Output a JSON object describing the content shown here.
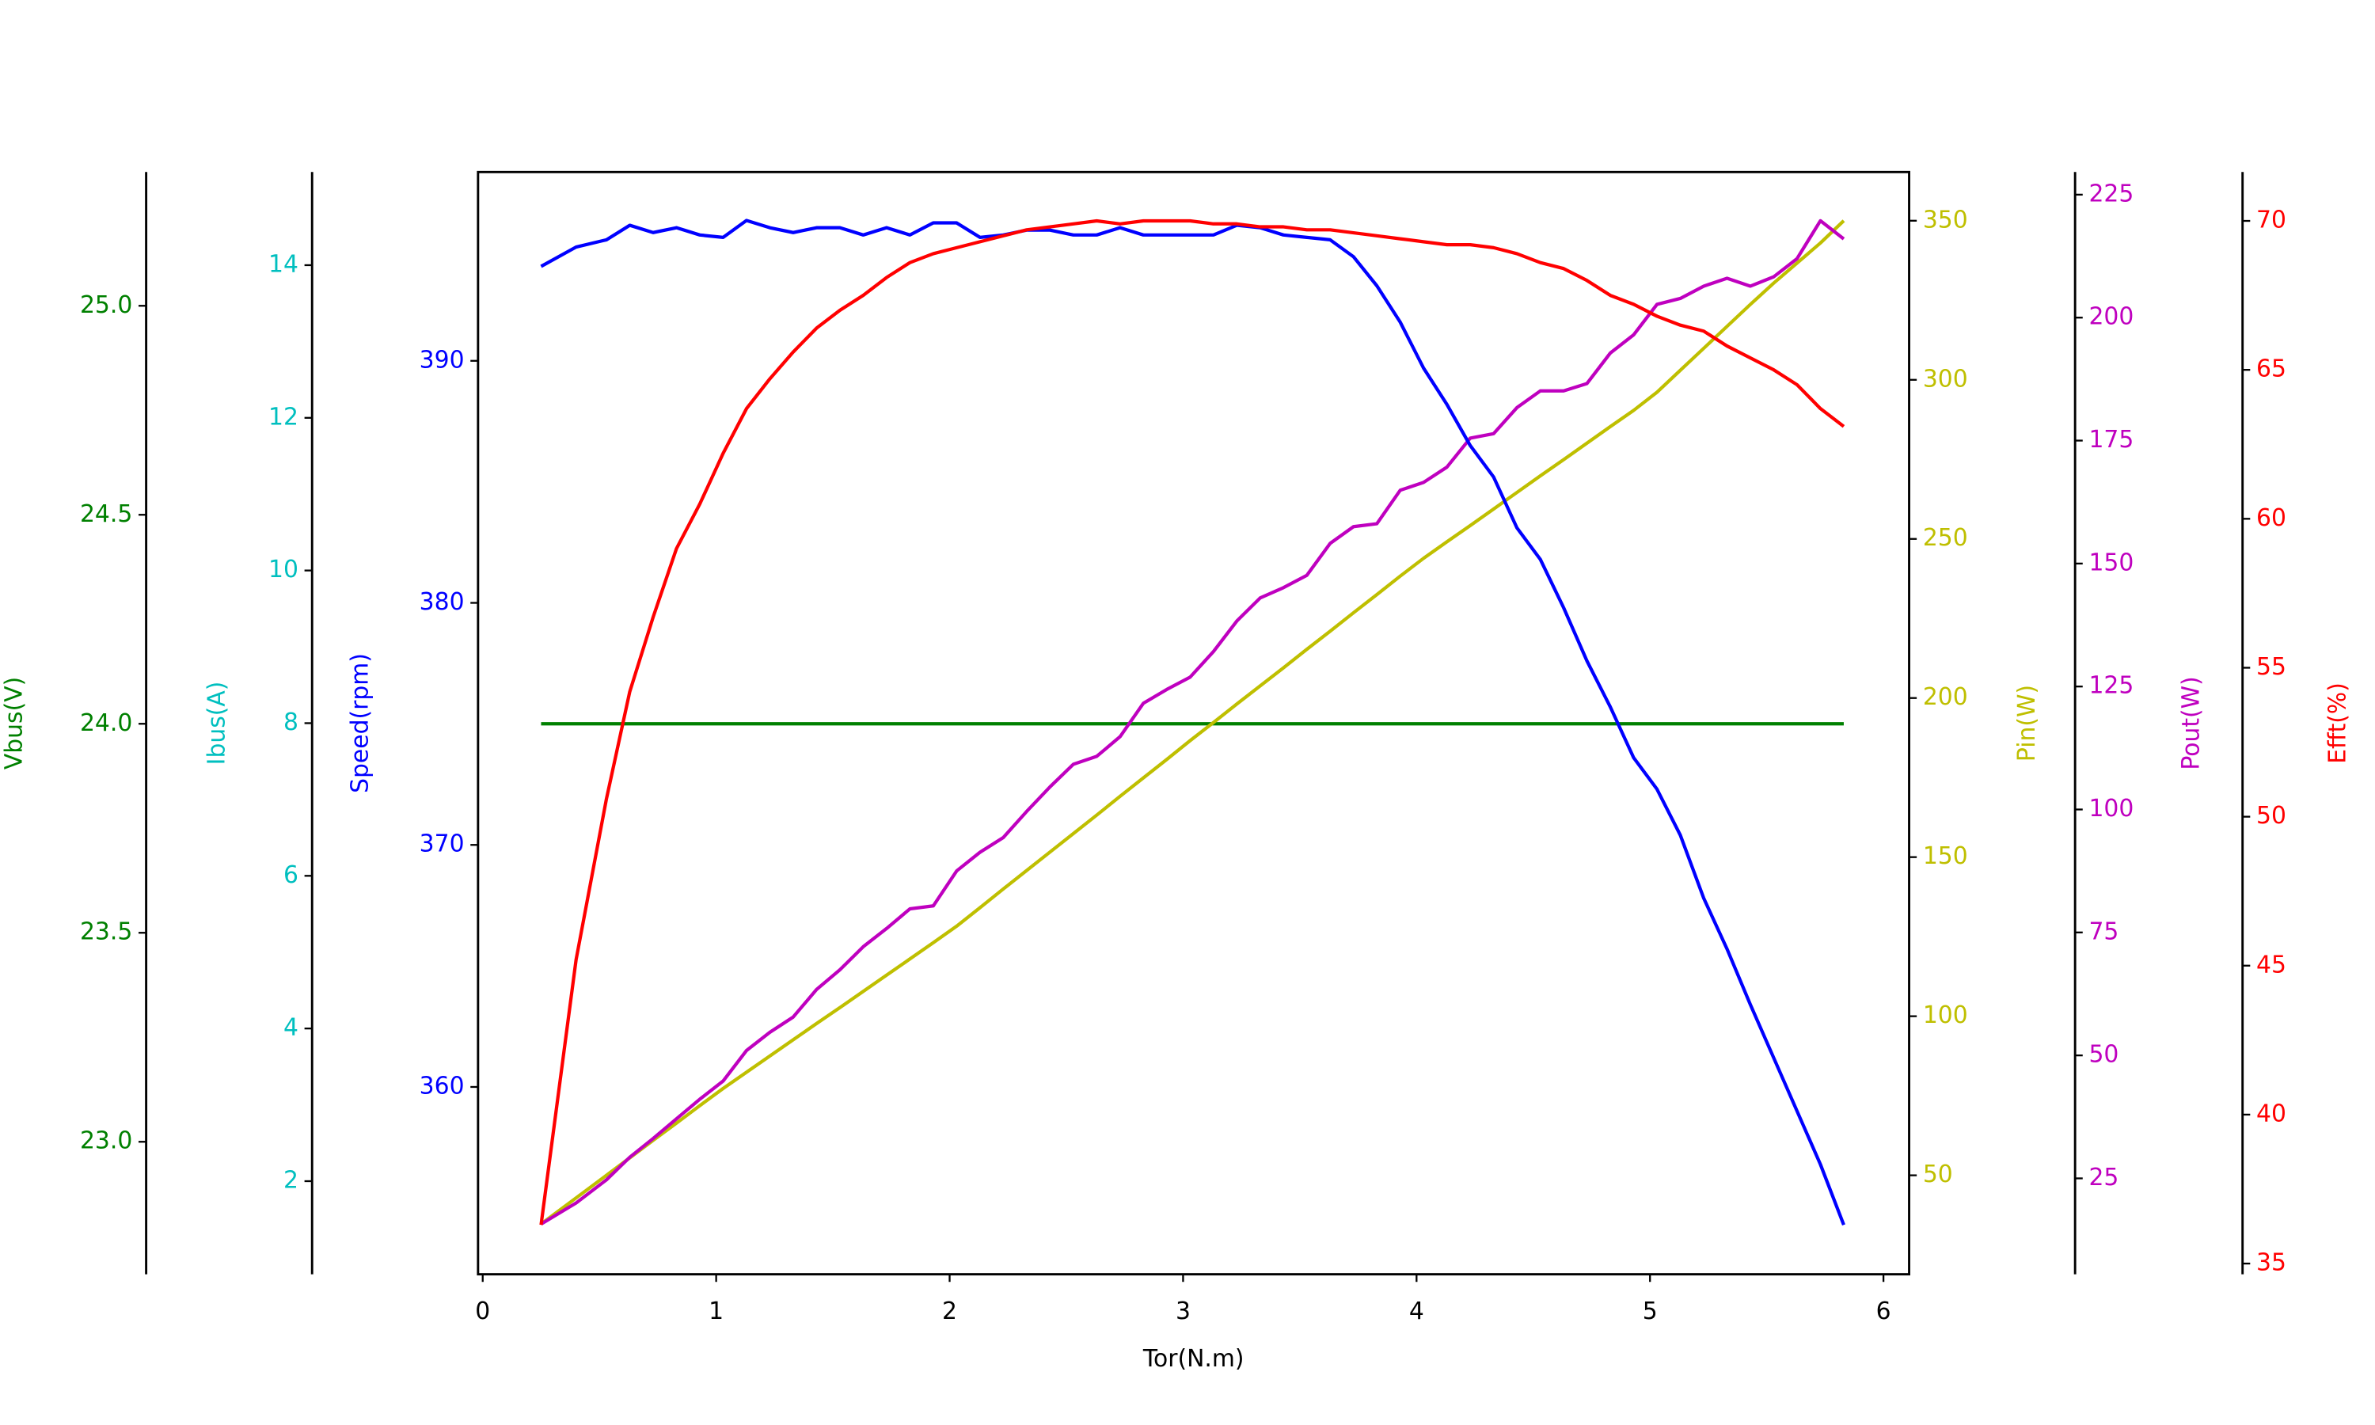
{
  "chart_data": {
    "type": "line",
    "xlabel": "Tor(N.m)",
    "xlim": [
      -0.02,
      6.11
    ],
    "xticks": [
      0,
      1,
      2,
      3,
      4,
      5,
      6
    ],
    "x": [
      0.25,
      0.4,
      0.53,
      0.63,
      0.73,
      0.83,
      0.93,
      1.03,
      1.13,
      1.23,
      1.33,
      1.43,
      1.53,
      1.63,
      1.73,
      1.83,
      1.93,
      2.03,
      2.13,
      2.23,
      2.33,
      2.43,
      2.53,
      2.63,
      2.73,
      2.83,
      2.93,
      3.03,
      3.13,
      3.23,
      3.33,
      3.43,
      3.53,
      3.63,
      3.73,
      3.83,
      3.93,
      4.03,
      4.13,
      4.23,
      4.33,
      4.43,
      4.53,
      4.63,
      4.73,
      4.83,
      4.93,
      5.03,
      5.13,
      5.23,
      5.33,
      5.43,
      5.53,
      5.63,
      5.73,
      5.83
    ],
    "axes": [
      {
        "label": "Vbus(V)",
        "color": "#008000",
        "lim": [
          22.683,
          25.32
        ],
        "ticks": [
          {
            "value": 23,
            "label": "23.0"
          },
          23.5,
          {
            "value": 24,
            "label": "24.0"
          },
          24.5,
          {
            "value": 25,
            "label": "25.0"
          }
        ]
      },
      {
        "label": "Ibus(A)",
        "color": "#00bfbf",
        "lim": [
          0.78,
          15.22
        ],
        "ticks": [
          2,
          4,
          6,
          8,
          10,
          12,
          14
        ]
      },
      {
        "label": "Speed(rpm)",
        "color": "#0000ff",
        "lim": [
          352.26,
          397.8
        ],
        "ticks": [
          360,
          370,
          380,
          390
        ]
      },
      {
        "label": "Pin(W)",
        "color": "#bfbf00",
        "lim": [
          18.9,
          365.3
        ],
        "ticks": [
          50,
          100,
          150,
          200,
          250,
          300,
          350
        ]
      },
      {
        "label": "Pout(W)",
        "color": "#bf00bf",
        "lim": [
          5.5,
          229.6
        ],
        "ticks": [
          25,
          50,
          75,
          100,
          125,
          150,
          175,
          200,
          225
        ]
      },
      {
        "label": "Efft(%)",
        "color": "#ff0000",
        "lim": [
          34.64,
          71.64
        ],
        "ticks": [
          35,
          40,
          45,
          50,
          55,
          60,
          65,
          70
        ]
      }
    ],
    "series": [
      {
        "axis": 0,
        "values": [
          24,
          24,
          24,
          24,
          24,
          24,
          24,
          24,
          24,
          24,
          24,
          24,
          24,
          24,
          24,
          24,
          24,
          24,
          24,
          24,
          24,
          24,
          24,
          24,
          24,
          24,
          24,
          24,
          24,
          24,
          24,
          24,
          24,
          24,
          24,
          24,
          24,
          24,
          24,
          24,
          24,
          24,
          24,
          24,
          24,
          24,
          24,
          24,
          24,
          24,
          24,
          24,
          24,
          24,
          24,
          24
        ]
      },
      {
        "axis": 3,
        "values": [
          34.7,
          42.9,
          50.0,
          55.5,
          61.0,
          66.4,
          71.9,
          77.3,
          82.4,
          87.5,
          92.6,
          97.7,
          102.7,
          107.8,
          112.9,
          118.0,
          123.1,
          128.3,
          134.1,
          140.0,
          145.8,
          151.6,
          157.4,
          163.2,
          169.1,
          174.9,
          180.7,
          186.6,
          192.3,
          198.1,
          203.8,
          209.5,
          215.3,
          221.0,
          226.8,
          232.5,
          238.3,
          243.9,
          249.1,
          254.2,
          259.4,
          264.6,
          269.8,
          274.9,
          280.1,
          285.3,
          290.4,
          296.1,
          303.0,
          309.9,
          316.8,
          323.7,
          330.4,
          336.7,
          343.0,
          350.0
        ]
      },
      {
        "axis": 4,
        "values": [
          15.7,
          20.0,
          24.7,
          29.3,
          33.1,
          37.1,
          41.1,
          44.8,
          51.0,
          54.7,
          57.8,
          63.4,
          67.4,
          72.1,
          75.8,
          79.8,
          80.4,
          87.5,
          91.3,
          94.3,
          99.6,
          104.6,
          109.2,
          110.8,
          114.8,
          121.6,
          124.4,
          126.9,
          132.1,
          138.3,
          143.0,
          145.1,
          147.6,
          154.1,
          157.5,
          158.1,
          164.9,
          166.5,
          169.6,
          175.5,
          176.4,
          181.7,
          185.1,
          185.1,
          186.6,
          192.8,
          196.5,
          202.7,
          203.9,
          206.4,
          208.0,
          206.4,
          208.3,
          212.0,
          219.7,
          216.0
        ]
      },
      {
        "axis": 2,
        "values": [
          393.9,
          394.7,
          395.0,
          395.6,
          395.3,
          395.5,
          395.2,
          395.1,
          395.8,
          395.5,
          395.3,
          395.5,
          395.5,
          395.2,
          395.5,
          395.2,
          395.7,
          395.7,
          395.1,
          395.2,
          395.4,
          395.4,
          395.2,
          395.2,
          395.5,
          395.2,
          395.2,
          395.2,
          395.2,
          395.6,
          395.5,
          395.2,
          395.1,
          395.0,
          394.3,
          393.1,
          391.6,
          389.7,
          388.2,
          386.5,
          385.2,
          383.1,
          381.8,
          379.8,
          377.6,
          375.7,
          373.6,
          372.3,
          370.4,
          367.8,
          365.7,
          363.4,
          361.2,
          359.0,
          356.8,
          354.3
        ]
      },
      {
        "axis": 5,
        "values": [
          36.3,
          45.2,
          50.6,
          54.2,
          56.7,
          59.0,
          60.5,
          62.2,
          63.7,
          64.7,
          65.6,
          66.4,
          67.0,
          67.5,
          68.1,
          68.6,
          68.9,
          69.1,
          69.3,
          69.5,
          69.7,
          69.8,
          69.9,
          70.0,
          69.9,
          70.0,
          70.0,
          70.0,
          69.9,
          69.9,
          69.8,
          69.8,
          69.7,
          69.7,
          69.6,
          69.5,
          69.4,
          69.3,
          69.2,
          69.2,
          69.1,
          68.9,
          68.6,
          68.4,
          68.0,
          67.5,
          67.2,
          66.8,
          66.5,
          66.3,
          65.8,
          65.4,
          65.0,
          64.5,
          63.7,
          63.1
        ]
      }
    ]
  }
}
